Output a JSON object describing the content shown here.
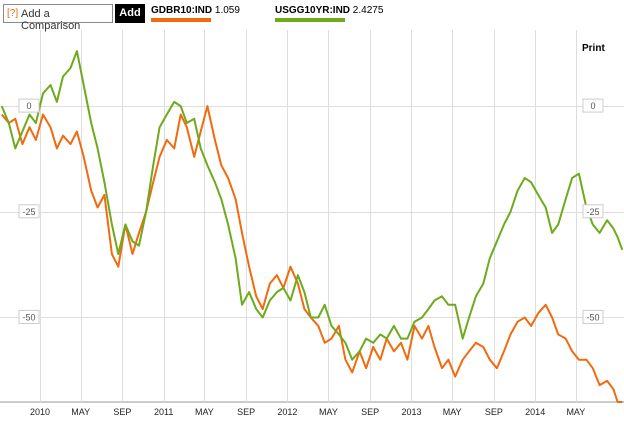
{
  "toolbar": {
    "compare_prefix": "[?]",
    "compare_label": "Add a Comparison",
    "add_label": "Add",
    "print_label": "Print"
  },
  "legend": [
    {
      "name": "GDBR10:IND",
      "value": "1.059",
      "color": "#f26a0f"
    },
    {
      "name": "USGG10YR:IND",
      "value": "2.4275",
      "color": "#6eaa1c"
    }
  ],
  "colors": {
    "grid": "#dddddd",
    "axis": "#999999",
    "label_box": "#cccccc"
  },
  "chart_data": {
    "type": "line",
    "title": "",
    "xlabel": "",
    "ylabel": "",
    "ylim": [
      -70,
      18
    ],
    "grid": true,
    "legend_position": "top",
    "y_ticks": [
      0,
      -25,
      -50
    ],
    "y_tick_labels": [
      "0",
      "-25",
      "-50"
    ],
    "x_ticks": [
      {
        "date": "2010-01-01",
        "label": "2010"
      },
      {
        "date": "2010-05-01",
        "label": "MAY"
      },
      {
        "date": "2010-09-01",
        "label": "SEP"
      },
      {
        "date": "2011-01-01",
        "label": "2011"
      },
      {
        "date": "2011-05-01",
        "label": "MAY"
      },
      {
        "date": "2011-09-01",
        "label": "SEP"
      },
      {
        "date": "2012-01-01",
        "label": "2012"
      },
      {
        "date": "2012-05-01",
        "label": "MAY"
      },
      {
        "date": "2012-09-01",
        "label": "SEP"
      },
      {
        "date": "2013-01-01",
        "label": "2013"
      },
      {
        "date": "2013-05-01",
        "label": "MAY"
      },
      {
        "date": "2013-09-01",
        "label": "SEP"
      },
      {
        "date": "2014-01-01",
        "label": "2014"
      },
      {
        "date": "2014-05-01",
        "label": "MAY"
      }
    ],
    "xlim": [
      "2009-09-05",
      "2014-09-20"
    ],
    "series": [
      {
        "name": "GDBR10:IND",
        "color": "#f26a0f",
        "x": [
          "2009-09-10",
          "2009-10-01",
          "2009-10-20",
          "2009-11-10",
          "2009-12-01",
          "2009-12-20",
          "2010-01-10",
          "2010-02-01",
          "2010-02-20",
          "2010-03-10",
          "2010-04-01",
          "2010-04-20",
          "2010-05-10",
          "2010-06-01",
          "2010-06-20",
          "2010-07-10",
          "2010-08-01",
          "2010-08-20",
          "2010-09-10",
          "2010-10-01",
          "2010-10-20",
          "2010-11-10",
          "2010-12-01",
          "2010-12-20",
          "2011-01-10",
          "2011-02-01",
          "2011-02-20",
          "2011-03-10",
          "2011-04-01",
          "2011-04-20",
          "2011-05-10",
          "2011-06-01",
          "2011-06-20",
          "2011-07-10",
          "2011-08-01",
          "2011-08-20",
          "2011-09-10",
          "2011-10-01",
          "2011-10-20",
          "2011-11-10",
          "2011-12-01",
          "2011-12-20",
          "2012-01-10",
          "2012-02-01",
          "2012-02-20",
          "2012-03-10",
          "2012-04-01",
          "2012-04-20",
          "2012-05-10",
          "2012-06-01",
          "2012-06-20",
          "2012-07-10",
          "2012-08-01",
          "2012-08-20",
          "2012-09-10",
          "2012-10-01",
          "2012-10-20",
          "2012-11-10",
          "2012-12-01",
          "2012-12-20",
          "2013-01-10",
          "2013-02-01",
          "2013-02-20",
          "2013-03-10",
          "2013-04-01",
          "2013-04-20",
          "2013-05-10",
          "2013-06-01",
          "2013-06-20",
          "2013-07-10",
          "2013-08-01",
          "2013-08-20",
          "2013-09-10",
          "2013-10-01",
          "2013-10-20",
          "2013-11-10",
          "2013-12-01",
          "2013-12-20",
          "2014-01-10",
          "2014-02-01",
          "2014-02-20",
          "2014-03-10",
          "2014-04-01",
          "2014-04-20",
          "2014-05-10",
          "2014-06-01",
          "2014-06-20",
          "2014-07-10",
          "2014-08-01",
          "2014-08-20",
          "2014-09-01",
          "2014-09-15"
        ],
        "values": [
          -2,
          -4,
          -3,
          -9,
          -5,
          -8,
          -2,
          -5,
          -10,
          -7,
          -9,
          -6,
          -12,
          -20,
          -24,
          -21,
          -35,
          -38,
          -28,
          -35,
          -30,
          -25,
          -18,
          -12,
          -8,
          -10,
          -2,
          -5,
          -12,
          -6,
          0,
          -8,
          -14,
          -17,
          -22,
          -30,
          -38,
          -45,
          -48,
          -42,
          -40,
          -43,
          -38,
          -42,
          -48,
          -50,
          -52,
          -56,
          -55,
          -52,
          -60,
          -63,
          -58,
          -62,
          -57,
          -60,
          -55,
          -58,
          -56,
          -60,
          -52,
          -55,
          -52,
          -57,
          -62,
          -60,
          -64,
          -60,
          -58,
          -56,
          -57,
          -60,
          -62,
          -58,
          -54,
          -51,
          -50,
          -52,
          -49,
          -47,
          -50,
          -54,
          -55,
          -58,
          -60,
          -60,
          -62,
          -66,
          -65,
          -67,
          -70,
          -70
        ]
      },
      {
        "name": "USGG10YR:IND",
        "color": "#6eaa1c",
        "x": [
          "2009-09-10",
          "2009-10-01",
          "2009-10-20",
          "2009-11-10",
          "2009-12-01",
          "2009-12-20",
          "2010-01-10",
          "2010-02-01",
          "2010-02-20",
          "2010-03-10",
          "2010-04-01",
          "2010-04-20",
          "2010-05-10",
          "2010-06-01",
          "2010-06-20",
          "2010-07-10",
          "2010-08-01",
          "2010-08-20",
          "2010-09-10",
          "2010-10-01",
          "2010-10-20",
          "2010-11-10",
          "2010-12-01",
          "2010-12-20",
          "2011-01-10",
          "2011-02-01",
          "2011-02-20",
          "2011-03-10",
          "2011-04-01",
          "2011-04-20",
          "2011-05-10",
          "2011-06-01",
          "2011-06-20",
          "2011-07-10",
          "2011-08-01",
          "2011-08-20",
          "2011-09-10",
          "2011-10-01",
          "2011-10-20",
          "2011-11-10",
          "2011-12-01",
          "2011-12-20",
          "2012-01-10",
          "2012-02-01",
          "2012-02-20",
          "2012-03-10",
          "2012-04-01",
          "2012-04-20",
          "2012-05-10",
          "2012-06-01",
          "2012-06-20",
          "2012-07-10",
          "2012-08-01",
          "2012-08-20",
          "2012-09-10",
          "2012-10-01",
          "2012-10-20",
          "2012-11-10",
          "2012-12-01",
          "2012-12-20",
          "2013-01-10",
          "2013-02-01",
          "2013-02-20",
          "2013-03-10",
          "2013-04-01",
          "2013-04-20",
          "2013-05-10",
          "2013-06-01",
          "2013-06-20",
          "2013-07-10",
          "2013-08-01",
          "2013-08-20",
          "2013-09-10",
          "2013-10-01",
          "2013-10-20",
          "2013-11-10",
          "2013-12-01",
          "2013-12-20",
          "2014-01-10",
          "2014-02-01",
          "2014-02-20",
          "2014-03-10",
          "2014-04-01",
          "2014-04-20",
          "2014-05-10",
          "2014-06-01",
          "2014-06-20",
          "2014-07-10",
          "2014-08-01",
          "2014-08-20",
          "2014-09-01",
          "2014-09-15"
        ],
        "values": [
          0,
          -4,
          -10,
          -6,
          -2,
          -4,
          3,
          5,
          1,
          7,
          9,
          13,
          5,
          -4,
          -10,
          -18,
          -28,
          -35,
          -28,
          -32,
          -33,
          -25,
          -14,
          -5,
          -2,
          1,
          0,
          -4,
          -3,
          -10,
          -14,
          -18,
          -22,
          -28,
          -36,
          -47,
          -44,
          -48,
          -50,
          -46,
          -44,
          -43,
          -46,
          -40,
          -44,
          -50,
          -50,
          -47,
          -52,
          -54,
          -56,
          -60,
          -58,
          -55,
          -56,
          -54,
          -55,
          -52,
          -55,
          -55,
          -51,
          -50,
          -48,
          -46,
          -45,
          -47,
          -47,
          -55,
          -50,
          -45,
          -42,
          -36,
          -32,
          -28,
          -25,
          -20,
          -17,
          -18,
          -21,
          -24,
          -30,
          -28,
          -22,
          -17,
          -16,
          -24,
          -28,
          -30,
          -27,
          -29,
          -31,
          -34
        ]
      }
    ]
  }
}
